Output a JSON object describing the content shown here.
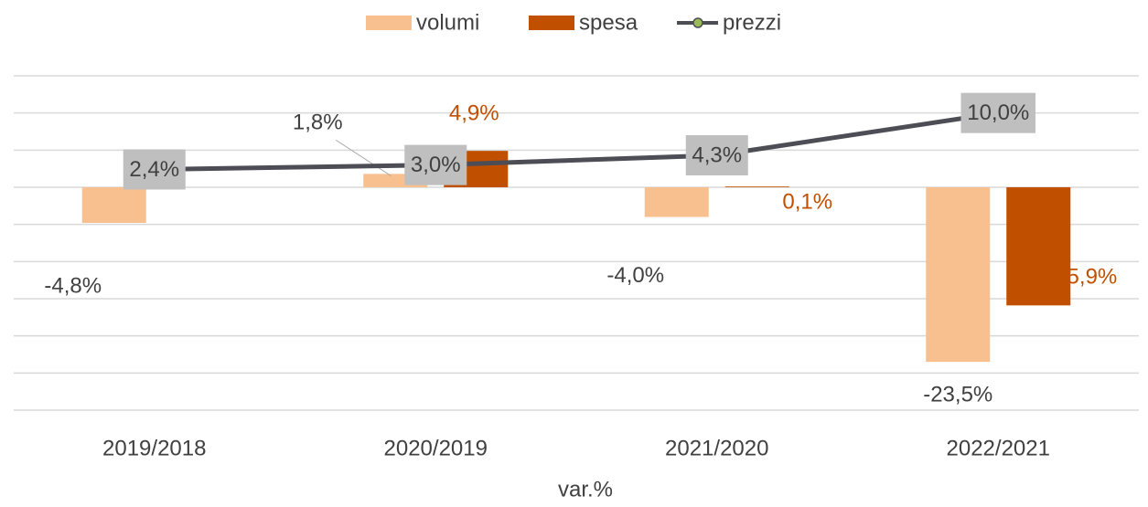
{
  "chart_data": {
    "type": "bar",
    "x_label": "var.%",
    "categories": [
      "2019/2018",
      "2020/2019",
      "2021/2020",
      "2022/2021"
    ],
    "series": [
      {
        "name": "volumi",
        "type": "bar",
        "color": "#f8c08f",
        "values": [
          -4.8,
          1.8,
          -4.0,
          -23.5
        ],
        "value_labels": [
          "-4,8%",
          "1,8%",
          "-4,0%",
          "-23,5%"
        ],
        "label_color": "#404040"
      },
      {
        "name": "spesa",
        "type": "bar",
        "color": "#c04f00",
        "values": [
          null,
          4.9,
          0.1,
          -15.9
        ],
        "value_labels": [
          null,
          "4,9%",
          "0,1%",
          "-15,9%"
        ],
        "label_color": "#c04f00"
      },
      {
        "name": "prezzi",
        "type": "line",
        "color": "#4d4d55",
        "marker_color": "#9bbb59",
        "values": [
          2.4,
          3.0,
          4.3,
          10.0
        ],
        "value_labels": [
          "2,4%",
          "3,0%",
          "4,3%",
          "10,0%"
        ],
        "label_color": "#404040"
      }
    ],
    "ylim": [
      -30,
      15
    ],
    "yticks": [
      -30,
      -25,
      -20,
      -15,
      -10,
      -5,
      0,
      5,
      10,
      15
    ],
    "grid": true,
    "legend": "top"
  }
}
